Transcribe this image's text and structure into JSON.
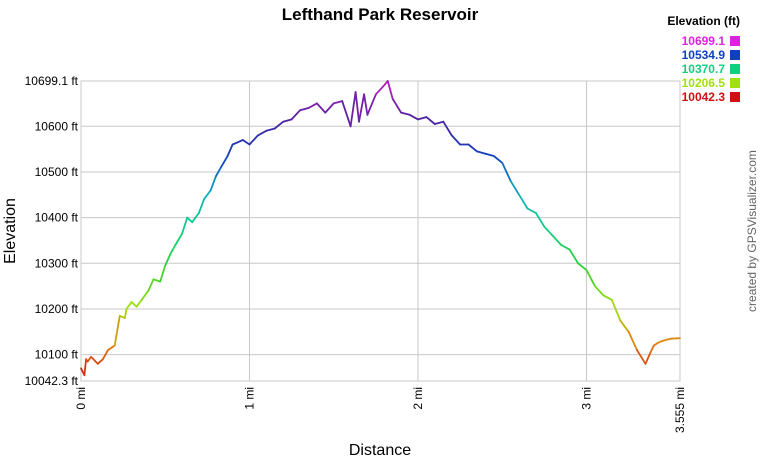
{
  "chart_data": {
    "type": "line",
    "title": "Lefthand Park Reservoir",
    "xlabel": "Distance",
    "ylabel": "Elevation",
    "credit": "created by GPSVisualizer.com",
    "xlim": [
      0,
      3.555
    ],
    "ylim": [
      10042.3,
      10699.1
    ],
    "x_ticks": [
      {
        "value": 0,
        "label": "0 mi"
      },
      {
        "value": 1,
        "label": "1 mi"
      },
      {
        "value": 2,
        "label": "2 mi"
      },
      {
        "value": 3,
        "label": "3 mi"
      },
      {
        "value": 3.555,
        "label": "3.555 mi"
      }
    ],
    "y_ticks": [
      {
        "value": 10042.3,
        "label": "10042.3 ft"
      },
      {
        "value": 10100,
        "label": "10100 ft"
      },
      {
        "value": 10200,
        "label": "10200 ft"
      },
      {
        "value": 10300,
        "label": "10300 ft"
      },
      {
        "value": 10400,
        "label": "10400 ft"
      },
      {
        "value": 10500,
        "label": "10500 ft"
      },
      {
        "value": 10600,
        "label": "10600 ft"
      },
      {
        "value": 10699.1,
        "label": "10699.1 ft"
      }
    ],
    "legend": {
      "title": "Elevation (ft)",
      "placement": "top-right",
      "items": [
        {
          "label": "10699.1",
          "color": "#e020e0"
        },
        {
          "label": "10534.9",
          "color": "#1040c0"
        },
        {
          "label": "10370.7",
          "color": "#10d080"
        },
        {
          "label": "10206.5",
          "color": "#a0e010"
        },
        {
          "label": "10042.3",
          "color": "#d01010"
        }
      ]
    },
    "color_scale": [
      {
        "value": 10042.3,
        "color": "#d01010"
      },
      {
        "value": 10124.4,
        "color": "#e08010"
      },
      {
        "value": 10206.5,
        "color": "#a0e010"
      },
      {
        "value": 10288.6,
        "color": "#30d030"
      },
      {
        "value": 10370.7,
        "color": "#10d080"
      },
      {
        "value": 10452.8,
        "color": "#10b0c0"
      },
      {
        "value": 10534.9,
        "color": "#1040c0"
      },
      {
        "value": 10617.0,
        "color": "#5020a0"
      },
      {
        "value": 10699.1,
        "color": "#c020c0"
      }
    ],
    "series": [
      {
        "x": [
          0,
          0.02,
          0.03,
          0.04,
          0.06,
          0.1,
          0.13,
          0.16,
          0.2,
          0.23,
          0.26,
          0.27,
          0.3,
          0.33,
          0.36,
          0.4,
          0.43,
          0.47,
          0.5,
          0.53,
          0.56,
          0.6,
          0.63,
          0.66,
          0.7,
          0.73,
          0.77,
          0.8,
          0.83,
          0.87,
          0.9,
          0.93,
          0.96,
          1.0,
          1.05,
          1.1,
          1.15,
          1.2,
          1.25,
          1.3,
          1.35,
          1.4,
          1.45,
          1.5,
          1.55,
          1.6,
          1.63,
          1.65,
          1.68,
          1.7,
          1.75,
          1.8,
          1.82,
          1.85,
          1.9,
          1.95,
          2.0,
          2.05,
          2.1,
          2.15,
          2.2,
          2.25,
          2.3,
          2.35,
          2.4,
          2.45,
          2.5,
          2.55,
          2.6,
          2.65,
          2.7,
          2.75,
          2.8,
          2.85,
          2.9,
          2.95,
          3.0,
          3.05,
          3.1,
          3.15,
          3.2,
          3.25,
          3.3,
          3.35,
          3.38,
          3.4,
          3.42,
          3.45,
          3.5,
          3.555
        ],
        "y": [
          10070,
          10055,
          10090,
          10085,
          10095,
          10080,
          10090,
          10110,
          10120,
          10185,
          10180,
          10200,
          10215,
          10205,
          10220,
          10240,
          10265,
          10260,
          10295,
          10320,
          10340,
          10365,
          10400,
          10390,
          10410,
          10440,
          10460,
          10490,
          10510,
          10535,
          10560,
          10565,
          10570,
          10560,
          10580,
          10590,
          10595,
          10610,
          10615,
          10635,
          10640,
          10650,
          10630,
          10650,
          10655,
          10600,
          10675,
          10610,
          10670,
          10625,
          10670,
          10690,
          10699.1,
          10660,
          10630,
          10625,
          10615,
          10620,
          10605,
          10610,
          10580,
          10560,
          10560,
          10545,
          10540,
          10535,
          10520,
          10480,
          10450,
          10420,
          10410,
          10380,
          10360,
          10340,
          10330,
          10300,
          10285,
          10250,
          10230,
          10220,
          10175,
          10150,
          10110,
          10080,
          10105,
          10120,
          10125,
          10130,
          10135,
          10136
        ]
      }
    ]
  }
}
